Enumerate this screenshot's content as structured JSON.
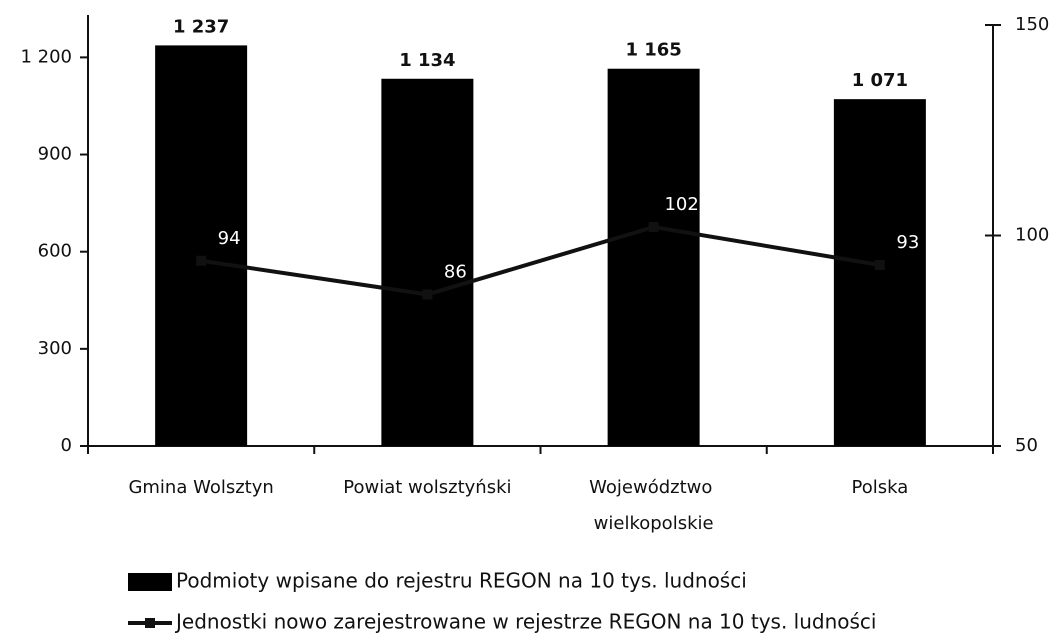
{
  "chart_data": {
    "type": "bar-line",
    "categories": [
      "Gmina Wolsztyn",
      "Powiat wolsztyński",
      "Województwo wielkopolskie",
      "Polska"
    ],
    "series": [
      {
        "name": "Podmioty wpisane do rejestru REGON na 10 tys. ludności",
        "type": "bar",
        "color": "#000000",
        "values": [
          1237,
          1134,
          1165,
          1071
        ],
        "value_labels": [
          "1 237",
          "1 134",
          "1 165",
          "1 071"
        ]
      },
      {
        "name": "Jednostki nowo zarejestrowane w rejestrze REGON na 10 tys. ludności",
        "type": "line",
        "axis": "y2",
        "color": "#111111",
        "values": [
          94,
          86,
          102,
          93
        ]
      }
    ],
    "ylim": [
      0,
      1300
    ],
    "yticks": [
      0,
      300,
      600,
      900,
      {
        "value": 1200,
        "label": "1 200"
      }
    ],
    "y2lim": [
      50,
      150
    ],
    "y2ticks": [
      50,
      100,
      150
    ],
    "legend": "bottom"
  }
}
